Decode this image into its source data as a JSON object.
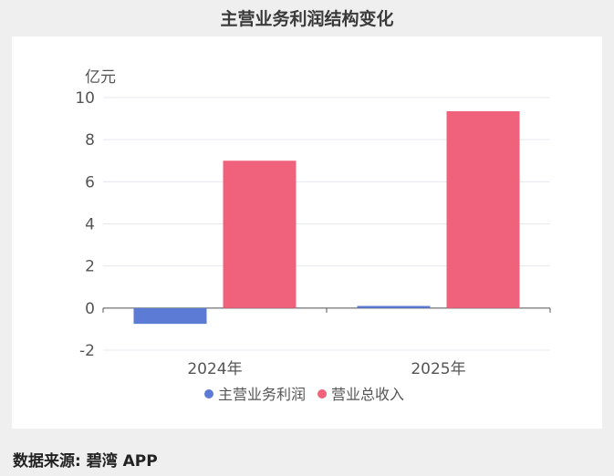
{
  "header": {
    "title": "主营业务利润结构变化"
  },
  "footer": {
    "source": "数据来源: 碧湾 APP"
  },
  "colors": {
    "profit": "#5b7bd5",
    "revenue": "#f0627c"
  },
  "chart_data": {
    "type": "bar",
    "unit_label": "亿元",
    "categories": [
      "2024年",
      "2025年"
    ],
    "series": [
      {
        "name": "主营业务利润",
        "values": [
          -0.75,
          0.1
        ],
        "color": "#5b7bd5"
      },
      {
        "name": "营业总收入",
        "values": [
          7.0,
          9.35
        ],
        "color": "#f0627c"
      }
    ],
    "ylim": [
      -2,
      10
    ],
    "yticks": [
      -2,
      0,
      2,
      4,
      6,
      8,
      10
    ],
    "grid": true,
    "legend": "bottom"
  }
}
